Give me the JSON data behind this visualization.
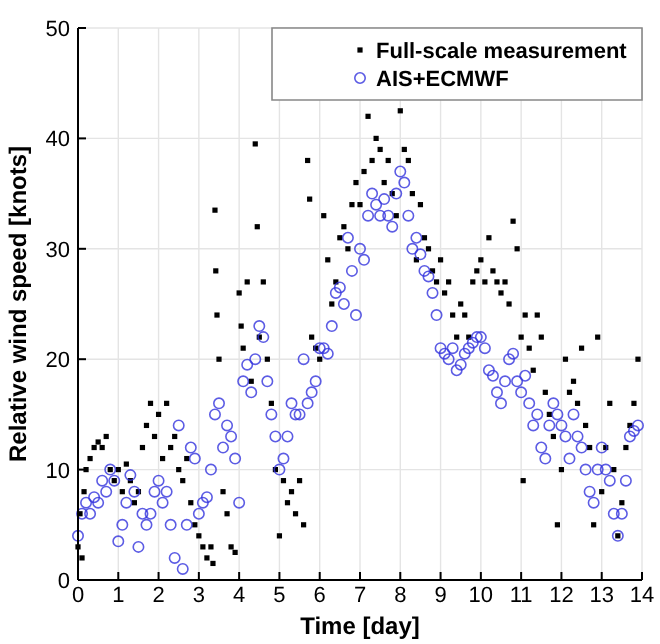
{
  "chart_data": {
    "type": "scatter",
    "xlabel": "Time [day]",
    "ylabel": "Relative wind speed [knots]",
    "xlim": [
      0,
      14
    ],
    "xticks": [
      0,
      1,
      2,
      3,
      4,
      5,
      6,
      7,
      8,
      9,
      10,
      11,
      12,
      13,
      14
    ],
    "ylim": [
      0,
      50
    ],
    "yticks": [
      0,
      10,
      20,
      30,
      40,
      50
    ],
    "grid": true,
    "legend": "top right",
    "series": [
      {
        "name": "Full-scale measurement",
        "color": "#000000",
        "marker": "square",
        "x": [
          0,
          0.05,
          0.1,
          0.15,
          0.2,
          0.3,
          0.4,
          0.5,
          0.6,
          0.7,
          0.8,
          0.9,
          1.0,
          1.1,
          1.2,
          1.3,
          1.4,
          1.5,
          1.6,
          1.7,
          1.8,
          1.9,
          2.0,
          2.1,
          2.2,
          2.3,
          2.4,
          2.5,
          2.6,
          2.7,
          2.8,
          2.9,
          3.0,
          3.1,
          3.2,
          3.3,
          3.35,
          3.4,
          3.42,
          3.45,
          3.5,
          3.6,
          3.7,
          3.8,
          3.9,
          4.0,
          4.05,
          4.1,
          4.2,
          4.3,
          4.4,
          4.45,
          4.5,
          4.6,
          4.7,
          4.8,
          4.9,
          5.0,
          5.1,
          5.2,
          5.3,
          5.4,
          5.5,
          5.6,
          5.7,
          5.75,
          5.8,
          5.9,
          6.0,
          6.1,
          6.2,
          6.3,
          6.4,
          6.5,
          6.6,
          6.7,
          6.8,
          6.9,
          7.0,
          7.1,
          7.2,
          7.3,
          7.4,
          7.5,
          7.6,
          7.7,
          7.8,
          7.9,
          8.0,
          8.1,
          8.2,
          8.3,
          8.4,
          8.5,
          8.6,
          8.7,
          8.8,
          8.9,
          9.0,
          9.1,
          9.2,
          9.3,
          9.4,
          9.5,
          9.6,
          9.7,
          9.8,
          9.9,
          10.0,
          10.1,
          10.2,
          10.3,
          10.4,
          10.5,
          10.6,
          10.7,
          10.8,
          10.9,
          11.0,
          11.05,
          11.1,
          11.2,
          11.3,
          11.4,
          11.5,
          11.6,
          11.7,
          11.8,
          11.9,
          12.0,
          12.1,
          12.2,
          12.3,
          12.4,
          12.5,
          12.6,
          12.7,
          12.8,
          12.9,
          13.0,
          13.1,
          13.2,
          13.3,
          13.4,
          13.5,
          13.6,
          13.7,
          13.8,
          13.9
        ],
        "values": [
          3,
          6,
          2,
          8,
          10,
          11,
          12,
          12.5,
          12,
          13,
          10,
          9,
          10,
          8,
          10.5,
          9,
          7,
          8,
          12,
          14,
          16,
          13,
          15,
          11,
          16,
          12,
          13,
          10,
          9,
          11,
          7,
          5,
          4,
          3,
          2,
          3,
          1.5,
          33.5,
          28,
          24,
          20,
          8,
          6,
          3,
          2.5,
          26,
          23,
          21,
          27,
          18,
          39.5,
          32,
          22,
          27,
          20,
          16,
          10,
          4,
          9,
          7,
          8,
          6,
          9,
          5,
          38,
          34.5,
          22,
          21,
          20,
          33,
          29,
          25,
          27,
          31,
          32,
          30,
          34,
          36,
          34,
          37,
          42,
          38,
          40,
          39,
          36,
          38,
          35,
          33,
          42.5,
          39,
          38,
          35,
          29,
          34,
          31,
          30,
          28,
          27,
          29,
          26,
          27,
          24,
          22,
          25,
          24,
          22,
          27,
          28,
          29,
          27,
          31,
          28,
          27,
          26,
          27,
          25,
          32.5,
          30,
          22,
          9,
          24,
          21,
          19,
          24,
          22,
          17,
          15,
          13,
          5,
          10,
          20,
          17,
          18,
          16,
          21,
          14,
          12,
          5,
          22,
          8,
          12,
          16,
          10,
          4,
          7,
          12,
          14,
          16,
          20
        ]
      },
      {
        "name": "AIS+ECMWF",
        "color": "#3333dd",
        "marker": "circle",
        "x": [
          0,
          0.1,
          0.2,
          0.3,
          0.4,
          0.5,
          0.6,
          0.7,
          0.8,
          0.9,
          1.0,
          1.1,
          1.2,
          1.3,
          1.4,
          1.5,
          1.6,
          1.7,
          1.8,
          1.9,
          2.0,
          2.1,
          2.2,
          2.3,
          2.4,
          2.5,
          2.6,
          2.7,
          2.8,
          2.9,
          3.0,
          3.1,
          3.2,
          3.3,
          3.4,
          3.5,
          3.6,
          3.7,
          3.8,
          3.9,
          4.0,
          4.1,
          4.2,
          4.3,
          4.4,
          4.5,
          4.6,
          4.7,
          4.8,
          4.9,
          5.0,
          5.1,
          5.2,
          5.3,
          5.4,
          5.5,
          5.6,
          5.7,
          5.8,
          5.9,
          6.0,
          6.1,
          6.2,
          6.3,
          6.4,
          6.5,
          6.6,
          6.7,
          6.8,
          6.9,
          7.0,
          7.1,
          7.2,
          7.3,
          7.4,
          7.5,
          7.6,
          7.7,
          7.8,
          7.9,
          8.0,
          8.1,
          8.2,
          8.3,
          8.4,
          8.5,
          8.6,
          8.7,
          8.8,
          8.9,
          9.0,
          9.1,
          9.2,
          9.3,
          9.4,
          9.5,
          9.6,
          9.7,
          9.8,
          9.9,
          10.0,
          10.1,
          10.2,
          10.3,
          10.4,
          10.5,
          10.6,
          10.7,
          10.8,
          10.9,
          11.0,
          11.1,
          11.2,
          11.3,
          11.4,
          11.5,
          11.6,
          11.7,
          11.8,
          11.9,
          12.0,
          12.1,
          12.2,
          12.3,
          12.4,
          12.5,
          12.6,
          12.7,
          12.8,
          12.9,
          13.0,
          13.1,
          13.2,
          13.3,
          13.4,
          13.5,
          13.6,
          13.7,
          13.8,
          13.9
        ],
        "values": [
          4,
          6,
          7,
          6,
          7.5,
          7,
          9,
          8,
          10,
          9,
          3.5,
          5,
          7,
          9.5,
          8,
          3,
          6,
          5,
          6,
          8,
          9,
          7,
          8,
          5,
          2,
          14,
          1,
          5,
          12,
          11,
          6,
          7,
          7.5,
          10,
          15,
          16,
          12,
          14,
          13,
          11,
          7,
          18,
          19.5,
          17,
          20,
          23,
          22,
          18,
          15,
          13,
          10,
          11,
          13,
          16,
          15,
          15,
          20,
          16,
          17,
          18,
          21,
          21,
          20.5,
          23,
          26,
          26.5,
          25,
          31,
          28,
          24,
          30,
          29,
          33,
          35,
          34,
          33,
          34.5,
          33,
          32,
          35,
          37,
          36,
          33,
          30,
          31,
          29.5,
          28,
          27.5,
          26,
          24,
          21,
          20.5,
          20,
          21,
          19,
          19.5,
          20.5,
          21,
          21.5,
          22,
          22,
          21,
          19,
          18.5,
          17,
          16,
          18,
          20,
          20.5,
          18,
          17,
          18.5,
          16,
          14,
          15,
          12,
          11,
          14,
          16,
          15,
          14,
          13,
          11,
          15,
          13,
          12,
          10,
          8,
          7,
          10,
          12,
          10,
          9,
          6,
          4,
          6,
          9,
          13,
          13.5,
          14
        ]
      }
    ]
  }
}
